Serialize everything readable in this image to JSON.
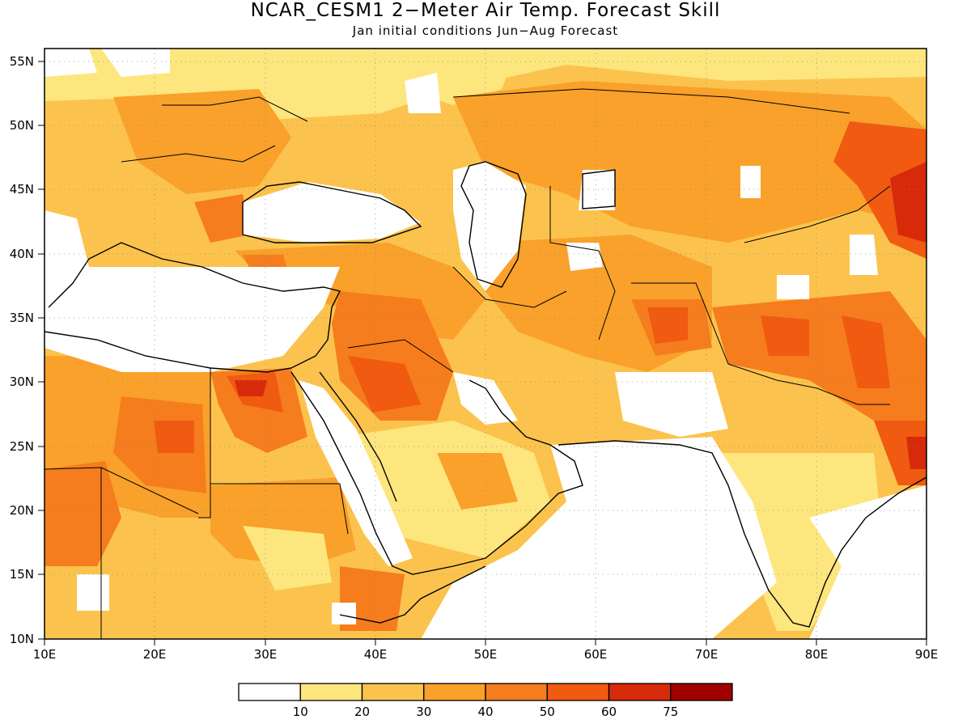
{
  "title": "NCAR_CESM1 2−Meter Air Temp. Forecast Skill",
  "subtitle": "Jan initial conditions  Jun−Aug Forecast",
  "axes": {
    "x_ticks": [
      "10E",
      "20E",
      "30E",
      "40E",
      "50E",
      "60E",
      "70E",
      "80E",
      "90E"
    ],
    "y_ticks": [
      "10N",
      "15N",
      "20N",
      "25N",
      "30N",
      "35N",
      "40N",
      "45N",
      "50N",
      "55N"
    ],
    "lon_range": [
      10,
      90
    ],
    "lat_range": [
      10,
      56
    ],
    "grid": "dotted"
  },
  "legend": {
    "placement": "bottom-center",
    "labels": [
      "10",
      "20",
      "30",
      "40",
      "50",
      "60",
      "75"
    ],
    "colors": [
      "#ffffff",
      "#fde67e",
      "#fbc34d",
      "#f9a12a",
      "#f57d1d",
      "#f05a11",
      "#d72a0a",
      "#a10000"
    ]
  },
  "colors": {
    "land_outline": "#000000",
    "ocean": "#ffffff"
  }
}
